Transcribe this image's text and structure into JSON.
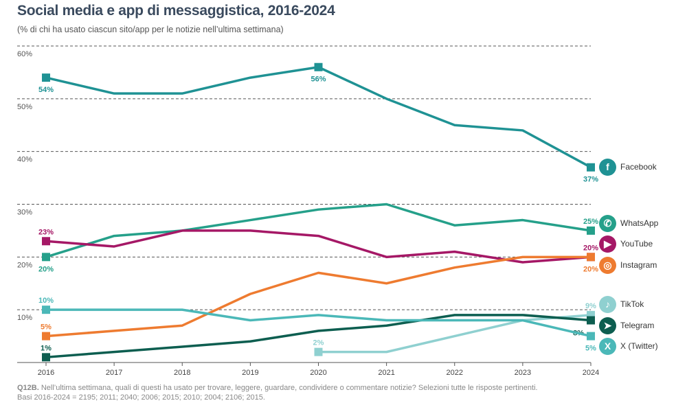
{
  "chart_data": {
    "type": "line",
    "title": "Social media e app di messaggistica, 2016-2024",
    "subtitle": "(% di chi ha usato ciascun sito/app per le notizie nell’ultima settimana)",
    "x": [
      "2016",
      "2017",
      "2018",
      "2019",
      "2020",
      "2021",
      "2022",
      "2023",
      "2024"
    ],
    "ylim": [
      0,
      60
    ],
    "yticks": [
      "10%",
      "20%",
      "30%",
      "40%",
      "50%",
      "60%"
    ],
    "grid": true,
    "legend_placement": "right",
    "series": [
      {
        "name": "Facebook",
        "color": "#1f9294",
        "icon": "facebook-icon",
        "glyph": "f",
        "values": [
          54,
          51,
          51,
          54,
          56,
          50,
          45,
          44,
          37
        ],
        "labels": {
          "0": "54%",
          "4": "56%",
          "8": "37%"
        }
      },
      {
        "name": "WhatsApp",
        "color": "#25a08a",
        "icon": "whatsapp-icon",
        "glyph": "✆",
        "values": [
          20,
          24,
          25,
          27,
          29,
          30,
          26,
          27,
          25
        ],
        "labels": {
          "0": "20%",
          "8": "25%"
        }
      },
      {
        "name": "YouTube",
        "color": "#a51866",
        "icon": "youtube-icon",
        "glyph": "▶",
        "values": [
          23,
          22,
          25,
          25,
          24,
          20,
          21,
          19,
          20
        ],
        "labels": {
          "0": "23%",
          "8": "20%"
        }
      },
      {
        "name": "Instagram",
        "color": "#ee7b30",
        "icon": "instagram-icon",
        "glyph": "◎",
        "values": [
          5,
          6,
          7,
          13,
          17,
          15,
          18,
          20,
          20
        ],
        "labels": {
          "0": "5%",
          "8": "20%"
        }
      },
      {
        "name": "TikTok",
        "color": "#8fd0d0",
        "icon": "tiktok-icon",
        "glyph": "♪",
        "values": [
          null,
          null,
          null,
          null,
          2,
          2,
          5,
          8,
          9
        ],
        "labels": {
          "4": "2%",
          "8": "9%"
        }
      },
      {
        "name": "Telegram",
        "color": "#0d5e50",
        "icon": "telegram-icon",
        "glyph": "➤",
        "values": [
          1,
          2,
          3,
          4,
          6,
          7,
          9,
          9,
          8
        ],
        "labels": {
          "0": "1%",
          "8": "8%"
        }
      },
      {
        "name": "X (Twitter)",
        "color": "#4bb8b8",
        "icon": "x-twitter-icon",
        "glyph": "X",
        "values": [
          10,
          10,
          10,
          8,
          9,
          8,
          8,
          8,
          5
        ],
        "labels": {
          "0": "10%",
          "8": "5%"
        }
      }
    ]
  },
  "footer": {
    "question_code": "Q12B.",
    "question": " Nell’ultima settimana, quali di questi ha usato per trovare, leggere, guardare, condividere o commentare notizie? Selezioni tutte le risposte pertinenti.",
    "bases": "Basi 2016-2024 = 2195; 2011; 2040; 2006; 2015; 2010; 2004; 2106; 2015."
  }
}
